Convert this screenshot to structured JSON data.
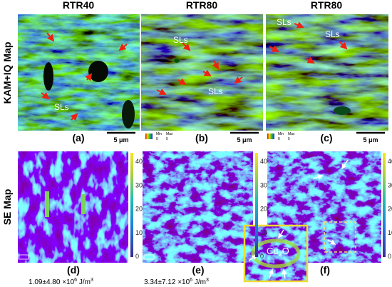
{
  "columns": [
    "RTR40",
    "RTR80",
    "RTR80"
  ],
  "rows": [
    "KAM+IQ Map",
    "SE Map"
  ],
  "panels": [
    "(a)",
    "(b)",
    "(c)",
    "(d)",
    "(e)",
    "(f)"
  ],
  "annotation": "SLs",
  "scale_bar": "5 μm",
  "mini_legend": {
    "min": "Min",
    "min_value": "0",
    "max": "Max",
    "max_value": "5"
  },
  "colorbar_ticks": [
    "0",
    "10",
    "20",
    "30",
    "40"
  ],
  "measurements": [
    {
      "prefix": "1.09±4.80 ×10",
      "exp": "6",
      "unit": " J/m",
      "unit_exp": "3"
    },
    {
      "prefix": "3.34±7.12 ×10",
      "exp": "6",
      "unit": " J/m",
      "unit_exp": "3"
    }
  ],
  "inset": {
    "main": "Cu",
    "sub": "2",
    "tail": "O"
  }
}
